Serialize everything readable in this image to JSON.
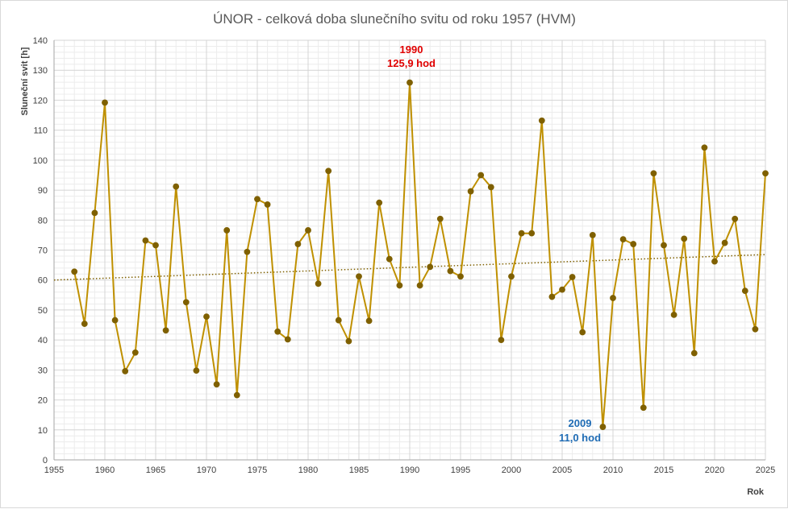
{
  "chart_data": {
    "type": "line",
    "title": "ÚNOR - celková doba slunečního svitu od roku 1957 (HVM)",
    "xlabel": "Rok",
    "ylabel": "Sluneční svit [h]",
    "xlim": [
      1955,
      2025
    ],
    "ylim": [
      0,
      140
    ],
    "x_ticks": [
      "1955",
      "1960",
      "1965",
      "1970",
      "1975",
      "1980",
      "1985",
      "1990",
      "1995",
      "2000",
      "2005",
      "2010",
      "2015",
      "2020",
      "2025"
    ],
    "y_ticks": [
      "0",
      "10",
      "20",
      "30",
      "40",
      "50",
      "60",
      "70",
      "80",
      "90",
      "100",
      "110",
      "120",
      "130",
      "140"
    ],
    "grid": true,
    "minor_grid": true,
    "legend": "none",
    "series": [
      {
        "color": "#BF9000",
        "marker_color": "#7F6000",
        "x": [
          1957,
          1958,
          1959,
          1960,
          1961,
          1962,
          1963,
          1964,
          1965,
          1966,
          1967,
          1968,
          1969,
          1970,
          1971,
          1972,
          1973,
          1974,
          1975,
          1976,
          1977,
          1978,
          1979,
          1980,
          1981,
          1982,
          1983,
          1984,
          1985,
          1986,
          1987,
          1988,
          1989,
          1990,
          1991,
          1992,
          1993,
          1994,
          1995,
          1996,
          1997,
          1998,
          1999,
          2000,
          2001,
          2002,
          2003,
          2004,
          2005,
          2006,
          2007,
          2008,
          2009,
          2010,
          2011,
          2012,
          2013,
          2014,
          2015,
          2016,
          2017,
          2018,
          2019,
          2020,
          2021,
          2022,
          2023,
          2024,
          2025
        ],
        "values": [
          62.8,
          45.4,
          82.4,
          119.2,
          46.6,
          29.6,
          35.8,
          73.2,
          71.6,
          43.2,
          91.2,
          52.6,
          29.8,
          47.8,
          25.2,
          76.6,
          21.6,
          69.4,
          87.0,
          85.2,
          42.8,
          40.2,
          72.0,
          76.6,
          58.8,
          96.4,
          46.6,
          39.6,
          61.2,
          46.4,
          85.8,
          67.0,
          58.2,
          125.9,
          58.2,
          64.4,
          80.4,
          63.0,
          61.2,
          89.6,
          95.0,
          91.0,
          40.0,
          61.2,
          75.6,
          75.6,
          113.2,
          54.4,
          56.8,
          61.0,
          42.6,
          75.0,
          11.0,
          54.0,
          73.6,
          72.0,
          17.4,
          95.6,
          71.6,
          48.4,
          73.8,
          35.6,
          104.2,
          66.2,
          72.4,
          80.4,
          56.4,
          43.6,
          95.6
        ]
      }
    ],
    "trendline": {
      "style": "dotted",
      "color": "#7F6000",
      "start": [
        1955,
        60.0
      ],
      "end": [
        2025,
        68.5
      ]
    },
    "annotations": [
      {
        "year": "1990",
        "value": "125,9 hod",
        "color": "#E00000"
      },
      {
        "year": "2009",
        "value": "11,0 hod",
        "color": "#1F6CB5"
      }
    ]
  }
}
